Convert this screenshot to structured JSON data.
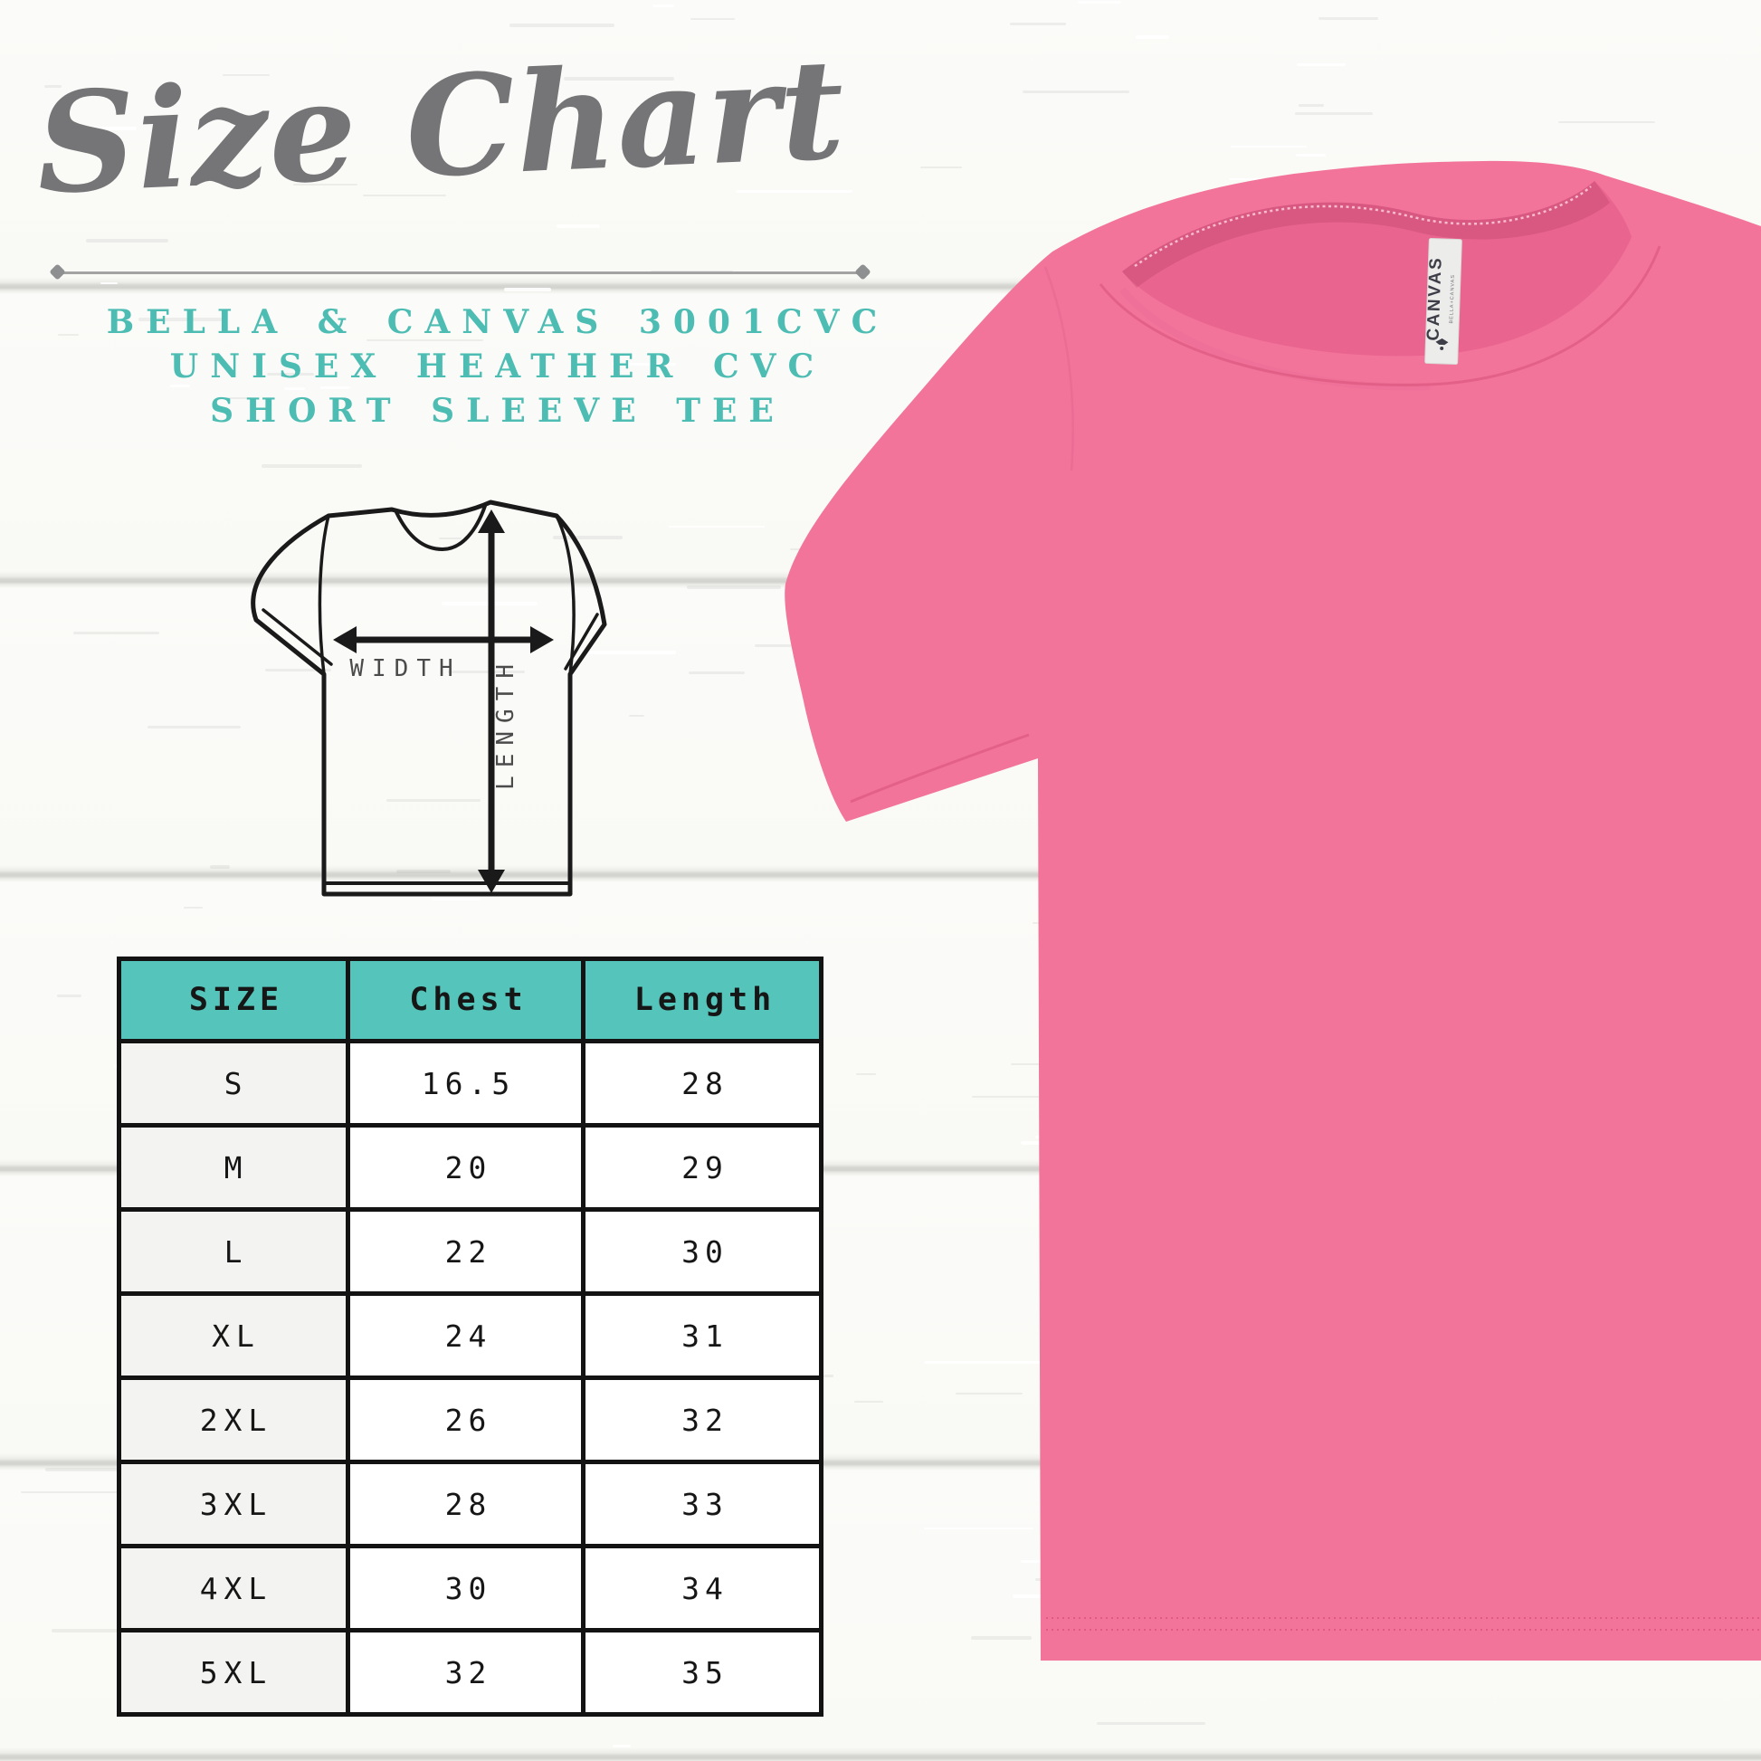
{
  "title": "Size Chart",
  "subtitle_lines": [
    "BELLA & CANVAS 3001CVC",
    "UNISEX HEATHER CVC",
    "SHORT SLEEVE TEE"
  ],
  "diagram": {
    "width_label": "WIDTH",
    "length_label": "LENGTH"
  },
  "chart_data": {
    "type": "table",
    "title": "Size Chart",
    "columns": [
      "SIZE",
      "Chest",
      "Length"
    ],
    "rows": [
      [
        "S",
        "16.5",
        "28"
      ],
      [
        "M",
        "20",
        "29"
      ],
      [
        "L",
        "22",
        "30"
      ],
      [
        "XL",
        "24",
        "31"
      ],
      [
        "2XL",
        "26",
        "32"
      ],
      [
        "3XL",
        "28",
        "33"
      ],
      [
        "4XL",
        "30",
        "34"
      ],
      [
        "5XL",
        "32",
        "35"
      ]
    ]
  },
  "shirt": {
    "label_brand": "CANVAS",
    "label_sub": "BELLA+CANVAS"
  },
  "colors": {
    "teal": "#4dbdb3",
    "table-header": "#55c4ba",
    "pink": "#f2749b",
    "pink-dark": "#e05e86",
    "title-gray": "#757577"
  }
}
